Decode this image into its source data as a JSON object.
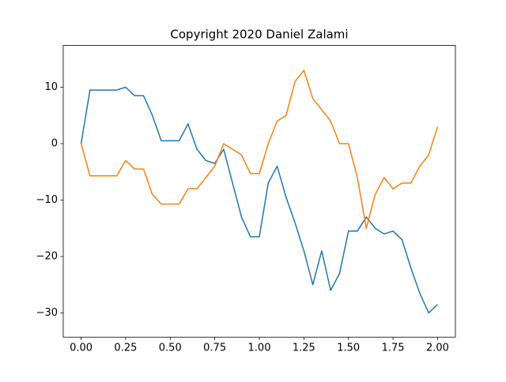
{
  "chart_data": {
    "type": "line",
    "title": "Copyright 2020 Daniel Zalami",
    "x": [
      0,
      0.05,
      0.1,
      0.15,
      0.2,
      0.25,
      0.3,
      0.35,
      0.4,
      0.45,
      0.5,
      0.55,
      0.6,
      0.65,
      0.7,
      0.75,
      0.8,
      0.85,
      0.9,
      0.95,
      1.0,
      1.05,
      1.1,
      1.15,
      1.2,
      1.25,
      1.3,
      1.35,
      1.4,
      1.45,
      1.5,
      1.55,
      1.6,
      1.65,
      1.7,
      1.75,
      1.8,
      1.85,
      1.9,
      1.95,
      2.0
    ],
    "series": [
      {
        "color": "#1f77b4",
        "values": [
          0,
          9.5,
          9.5,
          9.5,
          9.5,
          10,
          8.5,
          8.5,
          5,
          0.5,
          0.5,
          0.5,
          3.5,
          -1,
          -3,
          -3.5,
          -1,
          -7,
          -13,
          -16.5,
          -16.5,
          -7,
          -4,
          -9.5,
          -14,
          -19,
          -25,
          -19,
          -26,
          -23,
          -15.5,
          -15.5,
          -13,
          -15,
          -16,
          -15.5,
          -17,
          -22,
          -26.5,
          -30,
          -28.5
        ]
      },
      {
        "color": "#ff7f0e",
        "values": [
          0,
          -5.7,
          -5.7,
          -5.7,
          -5.7,
          -3,
          -4.5,
          -4.5,
          -9,
          -10.7,
          -10.7,
          -10.7,
          -8,
          -8,
          -6,
          -4,
          0,
          -1,
          -2,
          -5.3,
          -5.3,
          0,
          4,
          5,
          11,
          13,
          8,
          6,
          4,
          0,
          0,
          -6,
          -15,
          -9,
          -6,
          -8,
          -7,
          -7,
          -4,
          -2,
          3
        ]
      }
    ],
    "xlim": [
      -0.1,
      2.1
    ],
    "ylim": [
      -34.3,
      17.4
    ],
    "xticks": [
      {
        "value": 0,
        "label": "0.00"
      },
      {
        "value": 0.25,
        "label": "0.25"
      },
      {
        "value": 0.5,
        "label": "0.50"
      },
      {
        "value": 0.75,
        "label": "0.75"
      },
      {
        "value": 1,
        "label": "1.00"
      },
      {
        "value": 1.25,
        "label": "1.25"
      },
      {
        "value": 1.5,
        "label": "1.50"
      },
      {
        "value": 1.75,
        "label": "1.75"
      },
      {
        "value": 2,
        "label": "2.00"
      }
    ],
    "yticks": [
      {
        "value": -30,
        "label": "−30"
      },
      {
        "value": -20,
        "label": "−20"
      },
      {
        "value": -10,
        "label": "−10"
      },
      0,
      10
    ]
  }
}
